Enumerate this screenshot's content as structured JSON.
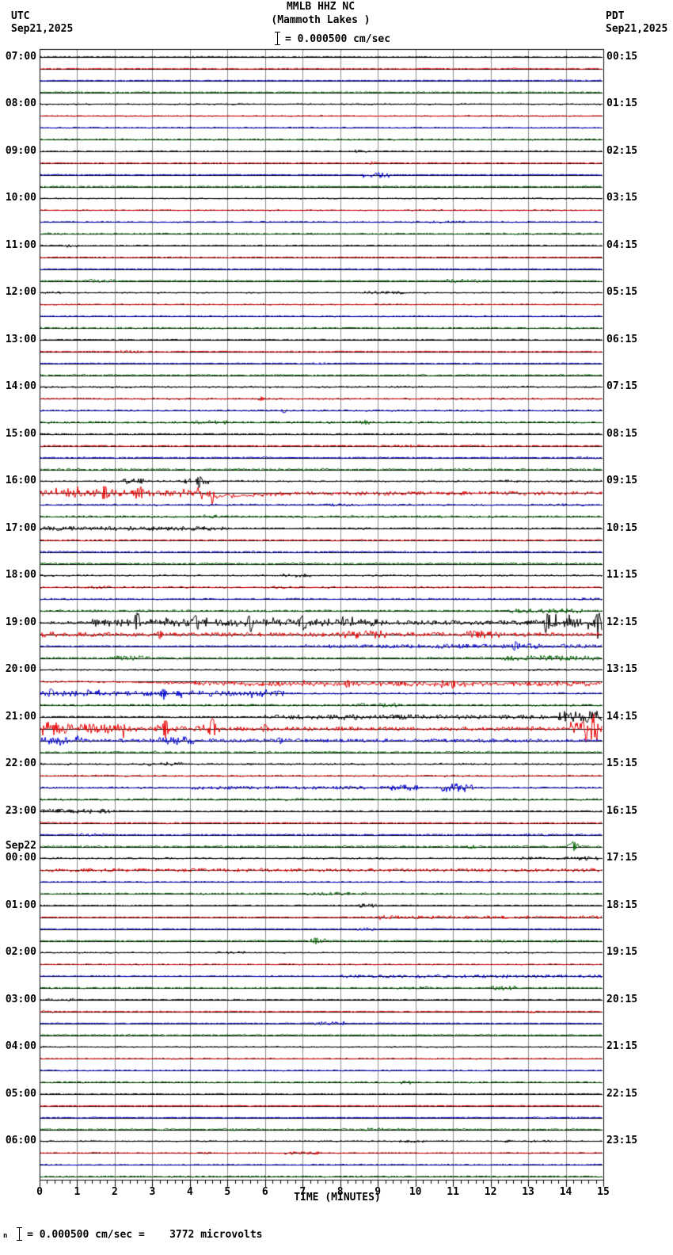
{
  "header": {
    "station_line": "MMLB HHZ NC",
    "location_line": "(Mammoth Lakes )",
    "scale_label": "= 0.000500 cm/sec",
    "left_tz": "UTC",
    "left_date": "Sep21,2025",
    "right_tz": "PDT",
    "right_date": "Sep21,2025"
  },
  "footer": {
    "prefix": "n",
    "scale_text": "= 0.000500 cm/sec =    3772 microvolts"
  },
  "axis": {
    "label": "TIME (MINUTES)",
    "ticks": [
      "0",
      "1",
      "2",
      "3",
      "4",
      "5",
      "6",
      "7",
      "8",
      "9",
      "10",
      "11",
      "12",
      "13",
      "14",
      "15"
    ]
  },
  "left_labels": [
    "07:00",
    "08:00",
    "09:00",
    "10:00",
    "11:00",
    "12:00",
    "13:00",
    "14:00",
    "15:00",
    "16:00",
    "17:00",
    "18:00",
    "19:00",
    "20:00",
    "21:00",
    "22:00",
    "23:00",
    "00:00",
    "01:00",
    "02:00",
    "03:00",
    "04:00",
    "05:00",
    "06:00"
  ],
  "left_date_break": {
    "before_index": 17,
    "label": "Sep22"
  },
  "right_labels": [
    "00:15",
    "01:15",
    "02:15",
    "03:15",
    "04:15",
    "05:15",
    "06:15",
    "07:15",
    "08:15",
    "09:15",
    "10:15",
    "11:15",
    "12:15",
    "13:15",
    "14:15",
    "15:15",
    "16:15",
    "17:15",
    "18:15",
    "19:15",
    "20:15",
    "21:15",
    "22:15",
    "23:15"
  ],
  "chart_data": {
    "type": "line",
    "kind": "helicorder-seismogram",
    "station": "MMLB",
    "channel": "HHZ",
    "network": "NC",
    "location_name": "Mammoth Lakes",
    "start_label_utc": "Sep21,2025 07:00 UTC",
    "date_rollover_label": "Sep22",
    "local_timezone": "PDT",
    "minutes_per_line": 15,
    "lines_per_hour": 4,
    "total_lines": 96,
    "xlabel": "TIME (MINUTES)",
    "x_ticks": [
      0,
      1,
      2,
      3,
      4,
      5,
      6,
      7,
      8,
      9,
      10,
      11,
      12,
      13,
      14,
      15
    ],
    "x_range": [
      0,
      15
    ],
    "amplitude_scale": "0.000500 cm/sec = 3772 microvolts",
    "trace_color_cycle": [
      "#000000",
      "#e80000",
      "#0000d8",
      "#006400"
    ],
    "grid_color": "#8c8c8c",
    "frame_color": "#000000",
    "base_noise": {
      "black": 0.85,
      "red": 0.85,
      "blue": 0.85,
      "green": 1.15
    },
    "daytime_boost": {
      "from_row": 28,
      "to_row": 68,
      "extra": 0.3
    },
    "events": [
      {
        "row": 10,
        "t0": 8.5,
        "t1": 9.3,
        "amp": 2.8
      },
      {
        "row": 16,
        "t0": 0.4,
        "t1": 1.0,
        "amp": 1.8
      },
      {
        "row": 29,
        "type": "spike",
        "t": 5.9,
        "amp": 2.2
      },
      {
        "row": 30,
        "type": "spike",
        "t": 6.5,
        "amp": 2.5
      },
      {
        "row": 36,
        "t0": 2.2,
        "t1": 2.8,
        "amp": 2.2
      },
      {
        "row": 36,
        "t0": 3.8,
        "t1": 4.5,
        "amp": 2.4
      },
      {
        "row": 36,
        "type": "spike",
        "t": 4.25,
        "amp": 5
      },
      {
        "row": 37,
        "t0": 0,
        "t1": 4.2,
        "amp": 2.8,
        "spiky": 0.12
      },
      {
        "row": 37,
        "type": "spike",
        "t": 1.75,
        "amp": 6
      },
      {
        "row": 37,
        "type": "spike",
        "t": 2.7,
        "amp": 5
      },
      {
        "row": 37,
        "t0": 4.2,
        "t1": 4.65,
        "amp": 8
      },
      {
        "row": 37,
        "type": "offset",
        "t0": 4.3,
        "t1": 4.55,
        "o0": 0,
        "o1": 5
      },
      {
        "row": 37,
        "type": "offset",
        "t0": 4.55,
        "t1": 6.6,
        "o0": 5,
        "o1": 0.6
      },
      {
        "row": 37,
        "type": "offset",
        "t0": 6.6,
        "t1": 15,
        "o0": 0.6,
        "o1": 0
      },
      {
        "row": 37,
        "t0": 4.65,
        "t1": 15,
        "amp": 1.5
      },
      {
        "row": 40,
        "t0": 0,
        "t1": 5,
        "amp": 1.6
      },
      {
        "row": 47,
        "t0": 12.5,
        "t1": 14.5,
        "amp": 1.6
      },
      {
        "row": 48,
        "t0": 1.4,
        "t1": 9.3,
        "amp": 3.6,
        "spiky": 0.12
      },
      {
        "row": 48,
        "type": "spike",
        "t": 2.6,
        "amp": 9
      },
      {
        "row": 48,
        "type": "spike",
        "t": 4.15,
        "amp": 7
      },
      {
        "row": 48,
        "type": "spike",
        "t": 5.6,
        "amp": 8
      },
      {
        "row": 48,
        "type": "spike",
        "t": 7.0,
        "amp": 7
      },
      {
        "row": 48,
        "t0": 9.3,
        "t1": 13.2,
        "amp": 1.8
      },
      {
        "row": 48,
        "t0": 13.2,
        "t1": 15,
        "amp": 4.5,
        "spiky": 0.15
      },
      {
        "row": 48,
        "type": "spike",
        "t": 13.5,
        "amp": 9
      },
      {
        "row": 48,
        "type": "spike",
        "t": 14.85,
        "amp": 10
      },
      {
        "row": 49,
        "t0": 0,
        "t1": 0.5,
        "amp": 3.5
      },
      {
        "row": 49,
        "t0": 0.5,
        "t1": 15,
        "amp": 1.6
      },
      {
        "row": 49,
        "type": "spike",
        "t": 3.2,
        "amp": 4
      },
      {
        "row": 49,
        "t0": 8,
        "t1": 9.2,
        "amp": 2.2
      },
      {
        "row": 49,
        "t0": 11.3,
        "t1": 12.3,
        "amp": 2.0
      },
      {
        "row": 50,
        "t0": 7,
        "t1": 10.4,
        "amp": 1.2
      },
      {
        "row": 50,
        "t0": 10.4,
        "t1": 15,
        "amp": 1.6
      },
      {
        "row": 50,
        "type": "spike",
        "t": 12.65,
        "amp": 4.5
      },
      {
        "row": 51,
        "t0": 12.3,
        "t1": 15,
        "amp": 2.0
      },
      {
        "row": 53,
        "type": "offset",
        "t0": 1,
        "t1": 6,
        "o0": 0,
        "o1": 3
      },
      {
        "row": 53,
        "type": "offset",
        "t0": 6,
        "t1": 15,
        "o0": 3,
        "o1": 3
      },
      {
        "row": 53,
        "t0": 4,
        "t1": 15,
        "amp": 1.8,
        "spiky": 0.05
      },
      {
        "row": 53,
        "type": "spike",
        "t": 8.2,
        "amp": 3.5
      },
      {
        "row": 53,
        "type": "spike",
        "t": 11.0,
        "amp": 3.5
      },
      {
        "row": 54,
        "t0": 0,
        "t1": 6.5,
        "amp": 2.2,
        "spiky": 0.1
      },
      {
        "row": 54,
        "type": "spike",
        "t": 0.3,
        "amp": 4
      },
      {
        "row": 54,
        "type": "spike",
        "t": 3.3,
        "amp": 4
      },
      {
        "row": 56,
        "t0": 6,
        "t1": 13.5,
        "amp": 1.8
      },
      {
        "row": 56,
        "t0": 13.8,
        "t1": 15,
        "amp": 6.5,
        "spiky": 0.15
      },
      {
        "row": 57,
        "t0": 0,
        "t1": 0.6,
        "amp": 8,
        "spiky": 0.2
      },
      {
        "row": 57,
        "t0": 0.6,
        "t1": 2.3,
        "amp": 5,
        "spiky": 0.15
      },
      {
        "row": 57,
        "t0": 2.3,
        "t1": 3.1,
        "amp": 2.5
      },
      {
        "row": 57,
        "t0": 3.1,
        "t1": 3.55,
        "amp": 5
      },
      {
        "row": 57,
        "type": "spike",
        "t": 3.35,
        "amp": 9
      },
      {
        "row": 57,
        "t0": 3.55,
        "t1": 4.35,
        "amp": 2.5
      },
      {
        "row": 57,
        "t0": 4.35,
        "t1": 4.85,
        "amp": 6
      },
      {
        "row": 57,
        "type": "spike",
        "t": 4.6,
        "amp": 10
      },
      {
        "row": 57,
        "t0": 4.85,
        "t1": 14.1,
        "amp": 1.5
      },
      {
        "row": 57,
        "type": "spike",
        "t": 6.0,
        "amp": 4
      },
      {
        "row": 57,
        "t0": 14.1,
        "t1": 15,
        "amp": 8,
        "spiky": 0.2
      },
      {
        "row": 58,
        "t0": 0,
        "t1": 1.3,
        "amp": 3.8,
        "spiky": 0.1
      },
      {
        "row": 58,
        "t0": 3.1,
        "t1": 4.1,
        "amp": 3.2
      },
      {
        "row": 58,
        "type": "spike",
        "t": 6.4,
        "amp": 3
      },
      {
        "row": 58,
        "t0": 1.3,
        "t1": 15,
        "amp": 1.1
      },
      {
        "row": 62,
        "t0": 4,
        "t1": 9.2,
        "amp": 1.1
      },
      {
        "row": 62,
        "t0": 9.2,
        "t1": 10.1,
        "amp": 2.8
      },
      {
        "row": 62,
        "t0": 10.7,
        "t1": 11.6,
        "amp": 4.2
      },
      {
        "row": 64,
        "t0": 0,
        "t1": 2.2,
        "amp": 1.8
      },
      {
        "row": 67,
        "t0": 13.9,
        "t1": 14.45,
        "amp": 2.0
      },
      {
        "row": 67,
        "type": "spike",
        "t": 14.2,
        "amp": 4
      },
      {
        "row": 69,
        "t0": 0,
        "t1": 15,
        "amp": 1.4
      },
      {
        "row": 72,
        "t0": 8.4,
        "t1": 9.0,
        "amp": 1.8
      },
      {
        "row": 73,
        "t0": 9,
        "t1": 15,
        "amp": 1.3
      },
      {
        "row": 75,
        "type": "spike",
        "t": 7.35,
        "amp": 2.5
      },
      {
        "row": 78,
        "t0": 8,
        "t1": 15,
        "amp": 1.3
      },
      {
        "row": 79,
        "t0": 12.0,
        "t1": 12.7,
        "amp": 1.8
      },
      {
        "row": 82,
        "t0": 7.3,
        "t1": 8.1,
        "amp": 1.8
      }
    ]
  }
}
